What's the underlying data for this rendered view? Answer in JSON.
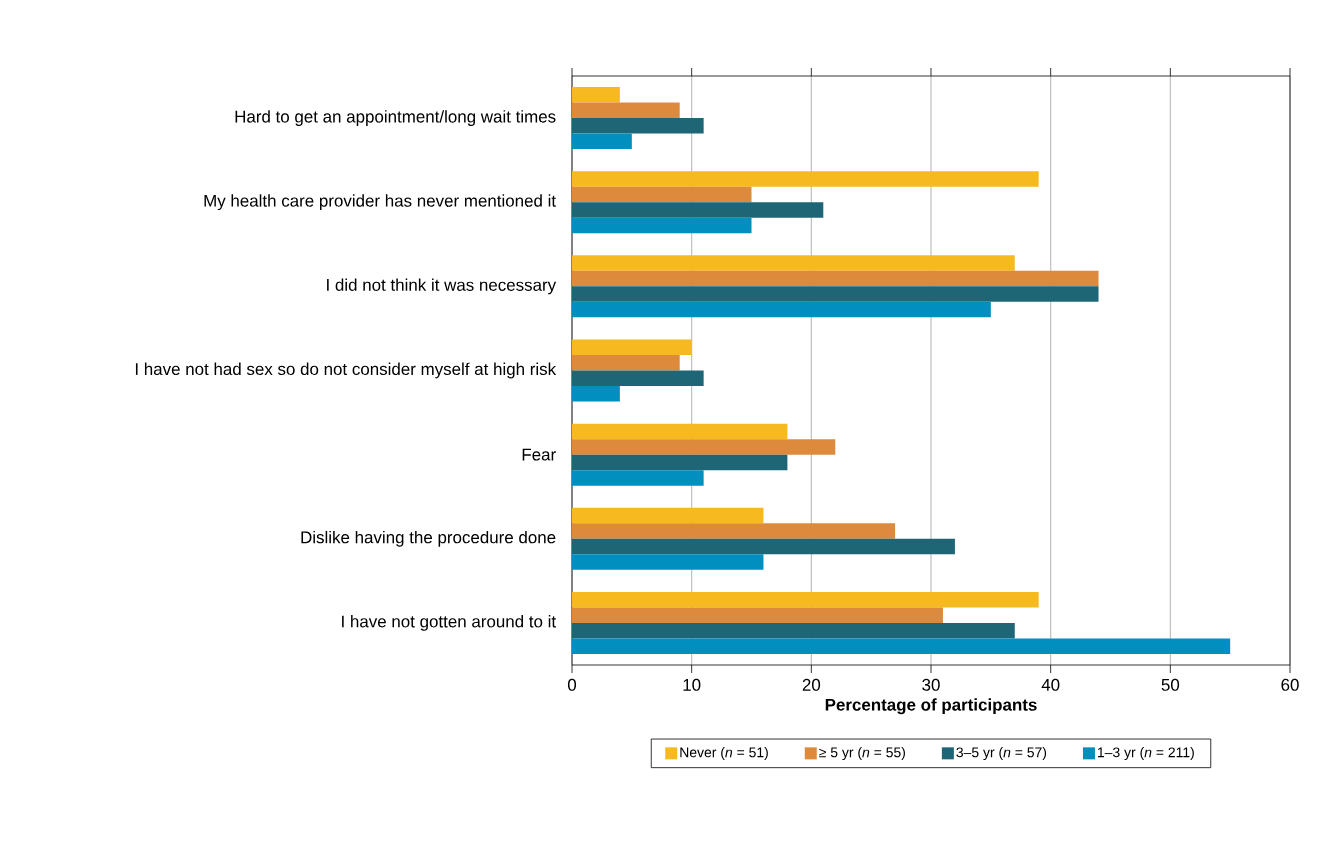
{
  "chart_data": {
    "type": "bar",
    "orientation": "horizontal",
    "xlabel": "Percentage of participants",
    "categories": [
      "Hard to get an appointment/long wait times",
      "My health care provider has never mentioned it",
      "I did not think it was necessary",
      "I have not had sex so do not consider myself at high risk",
      "Fear",
      "Dislike having the procedure done",
      "I have not gotten around to it"
    ],
    "series": [
      {
        "name": "Never (*n* = 51)",
        "color": "#f6b920",
        "values": [
          4,
          39,
          37,
          10,
          18,
          16,
          39
        ]
      },
      {
        "name": "≥ 5 yr (*n* = 55)",
        "color": "#de8a3c",
        "values": [
          9,
          15,
          44,
          9,
          22,
          27,
          31
        ]
      },
      {
        "name": "3–5 yr (*n* = 57)",
        "color": "#1e6675",
        "values": [
          11,
          21,
          44,
          11,
          18,
          32,
          37
        ]
      },
      {
        "name": "1–3 yr (*n* = 211)",
        "color": "#008fbf",
        "values": [
          5,
          15,
          35,
          4,
          11,
          16,
          55
        ]
      }
    ],
    "xlim": [
      0,
      60
    ],
    "xticks": [
      0,
      10,
      20,
      30,
      40,
      50,
      60
    ],
    "grid": "x",
    "legend": "bottom"
  }
}
